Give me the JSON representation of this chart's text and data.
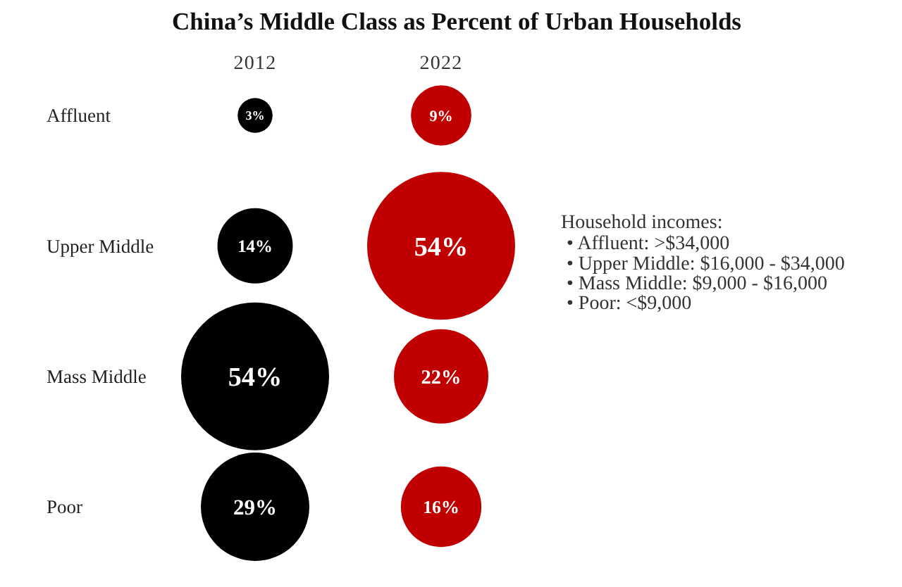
{
  "chart_data": {
    "type": "other",
    "title": "China’s Middle Class as Percent of Urban Households",
    "categories": [
      "Affluent",
      "Upper Middle",
      "Mass Middle",
      "Poor"
    ],
    "series": [
      {
        "name": "2012",
        "color": "#000000",
        "values": [
          3,
          14,
          54,
          29
        ],
        "value_labels": [
          "3%",
          "14%",
          "54%",
          "29%"
        ]
      },
      {
        "name": "2022",
        "color": "#c00000",
        "values": [
          9,
          54,
          22,
          16
        ],
        "value_labels": [
          "9%",
          "54%",
          "22%",
          "16%"
        ]
      }
    ],
    "annotations": [
      "Household incomes:",
      "• Affluent: >$34,000",
      "• Upper Middle: $16,000 - $34,000",
      "• Mass Middle: $9,000 - $16,000",
      "• Poor: <$9,000"
    ]
  }
}
